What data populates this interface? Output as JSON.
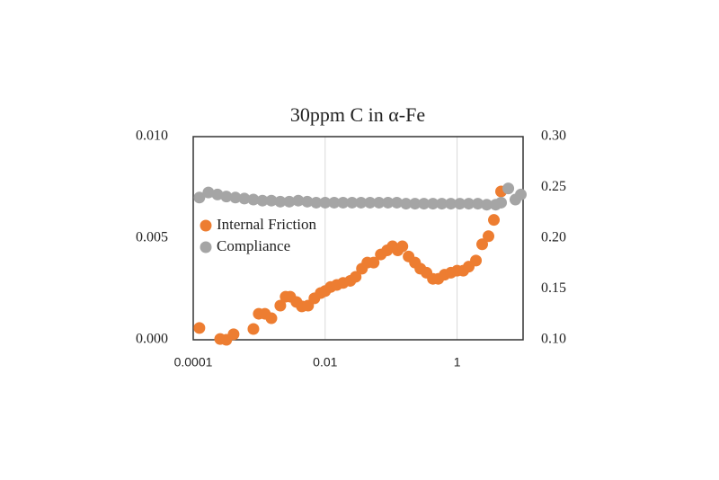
{
  "chart_data": {
    "type": "scatter",
    "title": "30ppm C in α-Fe",
    "log_x": true,
    "grid": "x",
    "legend": "center left",
    "xlim": [
      0.0001,
      10
    ],
    "xticks": [
      0.0001,
      0.01,
      1
    ],
    "ylim": [
      0,
      0.01
    ],
    "yticks": [
      {
        "value": 0,
        "label": "0.000"
      },
      0.005,
      {
        "value": 0.01,
        "label": "0.010"
      }
    ],
    "y2lim": [
      0.1,
      0.3
    ],
    "y2ticks": [
      {
        "value": 0.1,
        "label": "0.10"
      },
      0.15,
      {
        "value": 0.2,
        "label": "0.20"
      },
      0.25,
      {
        "value": 0.3,
        "label": "0.30"
      }
    ],
    "series": [
      {
        "name": "Internal Friction",
        "color": "#ed7d31",
        "x": [
          0.000124,
          0.000256,
          0.000318,
          0.000409,
          0.000817,
          0.000985,
          0.00122,
          0.00153,
          0.00209,
          0.00252,
          0.00295,
          0.00367,
          0.00443,
          0.00551,
          0.00687,
          0.00855,
          0.01,
          0.0121,
          0.015,
          0.0187,
          0.024,
          0.029,
          0.0361,
          0.0436,
          0.0543,
          0.0698,
          0.0869,
          0.105,
          0.126,
          0.148,
          0.184,
          0.23,
          0.277,
          0.344,
          0.43,
          0.518,
          0.645,
          0.804,
          1.0,
          1.24,
          1.5,
          1.93,
          2.4,
          2.99,
          3.61,
          4.64
        ],
        "values": [
          0.00058,
          4e-05,
          0.0,
          0.00027,
          0.00053,
          0.00128,
          0.00128,
          0.00106,
          0.00168,
          0.00212,
          0.00212,
          0.00186,
          0.00164,
          0.00168,
          0.00204,
          0.0023,
          0.0024,
          0.0026,
          0.0027,
          0.0028,
          0.0029,
          0.0031,
          0.0035,
          0.0038,
          0.0038,
          0.0042,
          0.0044,
          0.0046,
          0.0044,
          0.0046,
          0.0041,
          0.0038,
          0.0035,
          0.0033,
          0.003,
          0.003,
          0.0032,
          0.0033,
          0.0034,
          0.0034,
          0.0036,
          0.0039,
          0.0047,
          0.0051,
          0.0059,
          0.0073
        ]
      },
      {
        "name": "Compliance",
        "color": "#a5a5a5",
        "axis": "y2",
        "x": [
          0.000124,
          0.00017,
          0.000233,
          0.000318,
          0.000436,
          0.000596,
          0.000817,
          0.00112,
          0.00153,
          0.00209,
          0.00286,
          0.00391,
          0.00535,
          0.00731,
          0.01,
          0.0137,
          0.0187,
          0.0256,
          0.035,
          0.0479,
          0.0655,
          0.0895,
          0.122,
          0.168,
          0.23,
          0.314,
          0.43,
          0.587,
          0.804,
          1.1,
          1.5,
          2.06,
          2.81,
          3.85,
          4.64,
          5.97,
          7.65,
          9.25
        ],
        "values": [
          0.24,
          0.245,
          0.243,
          0.241,
          0.24,
          0.239,
          0.238,
          0.237,
          0.237,
          0.236,
          0.236,
          0.237,
          0.236,
          0.235,
          0.235,
          0.235,
          0.235,
          0.235,
          0.235,
          0.235,
          0.235,
          0.235,
          0.235,
          0.234,
          0.234,
          0.234,
          0.234,
          0.234,
          0.234,
          0.234,
          0.234,
          0.234,
          0.233,
          0.233,
          0.235,
          0.249,
          0.238,
          0.243
        ]
      }
    ]
  }
}
